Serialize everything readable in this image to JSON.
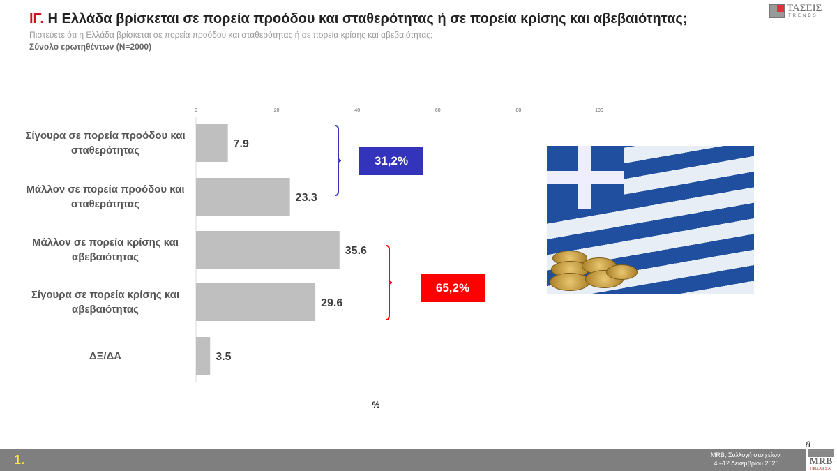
{
  "header": {
    "title_prefix": "ΙΓ.",
    "title": " Η Ελλάδα βρίσκεται σε πορεία προόδου και σταθερότητας ή σε πορεία κρίσης και αβεβαιότητας;",
    "subtitle": "Πιστεύετε ότι η Ελλάδα βρίσκεται σε πορεία προόδου και σταθερότητας ή σε πορεία κρίσης και αβεβαιότητας;",
    "base": "Σύνολο ερωτηθέντων (N=2000)"
  },
  "logo": {
    "line1": "ΤΑΣΕΙΣ",
    "line2": "TRENDS"
  },
  "chart_data": {
    "type": "bar",
    "orientation": "horizontal",
    "categories": [
      "Σίγουρα σε πορεία προόδου και σταθερότητας",
      "Μάλλον σε πορεία προόδου και σταθερότητας",
      "Μάλλον σε πορεία κρίσης και αβεβαιότητας",
      "Σίγουρα σε πορεία κρίσης και αβεβαιότητας",
      "ΔΞ/ΔΑ"
    ],
    "values": [
      7.9,
      23.3,
      35.6,
      29.6,
      3.5
    ],
    "xlim": [
      0,
      100
    ],
    "xticks": [
      0,
      20,
      40,
      60,
      80,
      100
    ],
    "xlabel": "%",
    "bar_color": "#bfbfbf",
    "annotations": [
      {
        "label": "31,2%",
        "groups": [
          0,
          1
        ],
        "color": "#3333bb"
      },
      {
        "label": "65,2%",
        "groups": [
          2,
          3
        ],
        "color": "#ff0000"
      }
    ]
  },
  "footer": {
    "section": "1.",
    "source_line1": "MRB, Συλλογή στοιχείων:",
    "source_line2": "4 –12 Δεκεμβρίου 2025",
    "page": "8",
    "brand": "MRB",
    "brand_sub": "HELLAS S.A."
  }
}
